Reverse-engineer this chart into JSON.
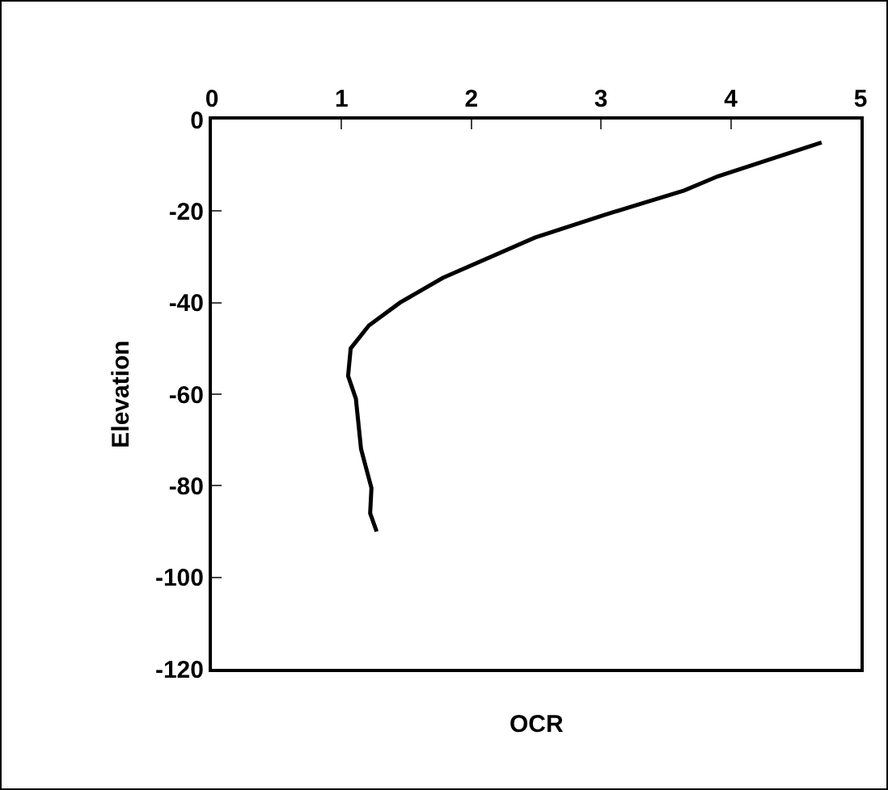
{
  "chart_data": {
    "type": "line",
    "xlabel": "OCR",
    "ylabel": "Elevation",
    "xlim": [
      0,
      5
    ],
    "xticks": [
      0,
      1,
      2,
      3,
      4,
      5
    ],
    "ylim": [
      -120,
      0
    ],
    "yticks": [
      -120,
      -100,
      -80,
      -60,
      -40,
      -20,
      0
    ],
    "grid": false,
    "marker": "none",
    "line_style": "solid",
    "series": [
      {
        "color": "#000000",
        "x": [
          4.7,
          3.9,
          3.64,
          3.03,
          2.49,
          1.78,
          1.45,
          1.21,
          1.07,
          1.05,
          1.11,
          1.15,
          1.23,
          1.22,
          1.27
        ],
        "values": [
          -5,
          -12.4,
          -15.5,
          -20.8,
          -25.8,
          -34.6,
          -40,
          -45,
          -50,
          -56,
          -61,
          -72,
          -80.5,
          -86,
          -90
        ]
      }
    ]
  }
}
